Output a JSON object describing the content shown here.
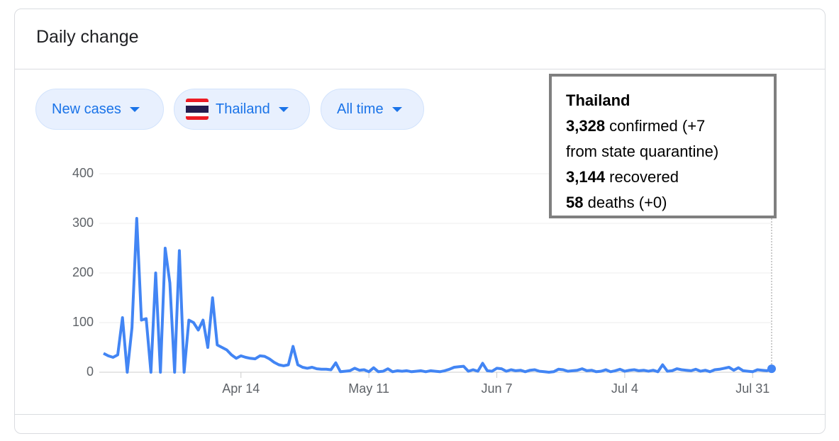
{
  "header": {
    "title": "Daily change"
  },
  "filters": [
    "New cases",
    "Thailand",
    "All time"
  ],
  "tooltip": {
    "title": "Thailand",
    "lines": [
      {
        "bold": "3,328",
        "text": " confirmed (+7"
      },
      {
        "bold": null,
        "text": "from state quarantine)"
      },
      {
        "bold": "3,144",
        "text": " recovered"
      },
      {
        "bold": "58",
        "text": " deaths (+0)"
      }
    ]
  },
  "chart_data": {
    "type": "line",
    "color": "#4285f4",
    "grid": true,
    "ylim": [
      0,
      400
    ],
    "yticks": [
      0,
      100,
      200,
      300,
      400
    ],
    "categories": [
      null,
      null,
      null,
      null,
      null,
      null,
      null,
      null,
      null,
      null,
      null,
      null,
      null,
      null,
      null,
      null,
      null,
      null,
      null,
      null,
      null,
      null,
      null,
      null,
      null,
      null,
      null,
      null,
      null,
      "Apr 14",
      null,
      null,
      null,
      null,
      null,
      null,
      null,
      null,
      null,
      null,
      null,
      null,
      null,
      null,
      null,
      null,
      null,
      null,
      null,
      null,
      null,
      null,
      null,
      null,
      null,
      null,
      "May 11",
      null,
      null,
      null,
      null,
      null,
      null,
      null,
      null,
      null,
      null,
      null,
      null,
      null,
      null,
      null,
      null,
      null,
      null,
      null,
      null,
      null,
      null,
      null,
      null,
      null,
      null,
      "Jun 7",
      null,
      null,
      null,
      null,
      null,
      null,
      null,
      null,
      null,
      null,
      null,
      null,
      null,
      null,
      null,
      null,
      null,
      null,
      null,
      null,
      null,
      null,
      null,
      null,
      null,
      null,
      "Jul 4",
      null,
      null,
      null,
      null,
      null,
      null,
      null,
      null,
      null,
      null,
      null,
      null,
      null,
      null,
      null,
      null,
      null,
      null,
      null,
      null,
      null,
      null,
      null,
      null,
      null,
      null,
      "Jul 31",
      null,
      null,
      null,
      null
    ],
    "values": [
      38,
      33,
      30,
      35,
      110,
      0,
      90,
      310,
      105,
      108,
      0,
      200,
      0,
      250,
      180,
      0,
      245,
      0,
      105,
      100,
      85,
      105,
      50,
      150,
      55,
      50,
      45,
      35,
      28,
      33,
      30,
      28,
      27,
      33,
      32,
      27,
      20,
      15,
      13,
      15,
      52,
      15,
      10,
      8,
      10,
      7,
      6,
      6,
      5,
      19,
      1,
      2,
      3,
      8,
      4,
      5,
      1,
      9,
      1,
      2,
      7,
      1,
      3,
      2,
      3,
      1,
      2,
      3,
      1,
      3,
      2,
      1,
      3,
      6,
      10,
      11,
      12,
      2,
      5,
      2,
      18,
      3,
      2,
      8,
      7,
      2,
      5,
      3,
      4,
      1,
      4,
      5,
      2,
      1,
      0,
      1,
      6,
      5,
      2,
      3,
      4,
      7,
      3,
      4,
      1,
      2,
      5,
      1,
      3,
      6,
      2,
      4,
      5,
      3,
      4,
      2,
      4,
      1,
      15,
      2,
      3,
      7,
      5,
      4,
      3,
      6,
      2,
      4,
      1,
      5,
      6,
      8,
      10,
      4,
      9,
      3,
      2,
      1,
      5,
      4,
      3,
      7
    ]
  }
}
